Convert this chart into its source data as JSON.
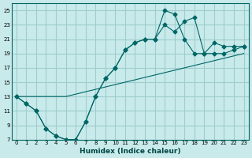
{
  "xlabel": "Humidex (Indice chaleur)",
  "ylabel": "",
  "background_color": "#c8eaea",
  "grid_color": "#a0cccc",
  "line_color": "#006666",
  "xlim": [
    0,
    23
  ],
  "ylim": [
    7,
    26
  ],
  "xticks": [
    0,
    1,
    2,
    3,
    4,
    5,
    6,
    7,
    8,
    9,
    10,
    11,
    12,
    13,
    14,
    15,
    16,
    17,
    18,
    19,
    20,
    21,
    22,
    23
  ],
  "yticks": [
    7,
    9,
    11,
    13,
    15,
    17,
    19,
    21,
    23,
    25
  ],
  "line1_x": [
    0,
    1,
    2,
    3,
    4,
    5,
    6,
    7,
    8,
    9,
    10,
    11,
    12,
    13,
    14,
    15,
    16,
    17,
    18,
    19,
    20,
    21,
    22,
    23
  ],
  "line1_y": [
    13,
    12,
    11,
    8.5,
    7.5,
    7,
    7,
    9.5,
    13,
    15.5,
    17,
    19.5,
    20.5,
    21,
    21,
    23,
    22,
    23.5,
    24,
    19,
    20.5,
    20,
    20,
    20
  ],
  "line2_x": [
    0,
    1,
    2,
    3,
    4,
    5,
    6,
    7,
    8,
    9,
    10,
    11,
    12,
    13,
    14,
    15,
    16,
    17,
    18,
    19,
    20,
    21,
    22,
    23
  ],
  "line2_y": [
    13,
    12,
    11,
    8.5,
    7.5,
    7,
    7,
    9.5,
    13,
    15.5,
    17,
    19.5,
    20.5,
    21,
    21,
    25,
    24.5,
    21,
    19,
    19,
    19,
    19,
    19.5,
    20
  ],
  "line3_x": [
    0,
    5,
    23
  ],
  "line3_y": [
    13,
    13,
    19
  ]
}
